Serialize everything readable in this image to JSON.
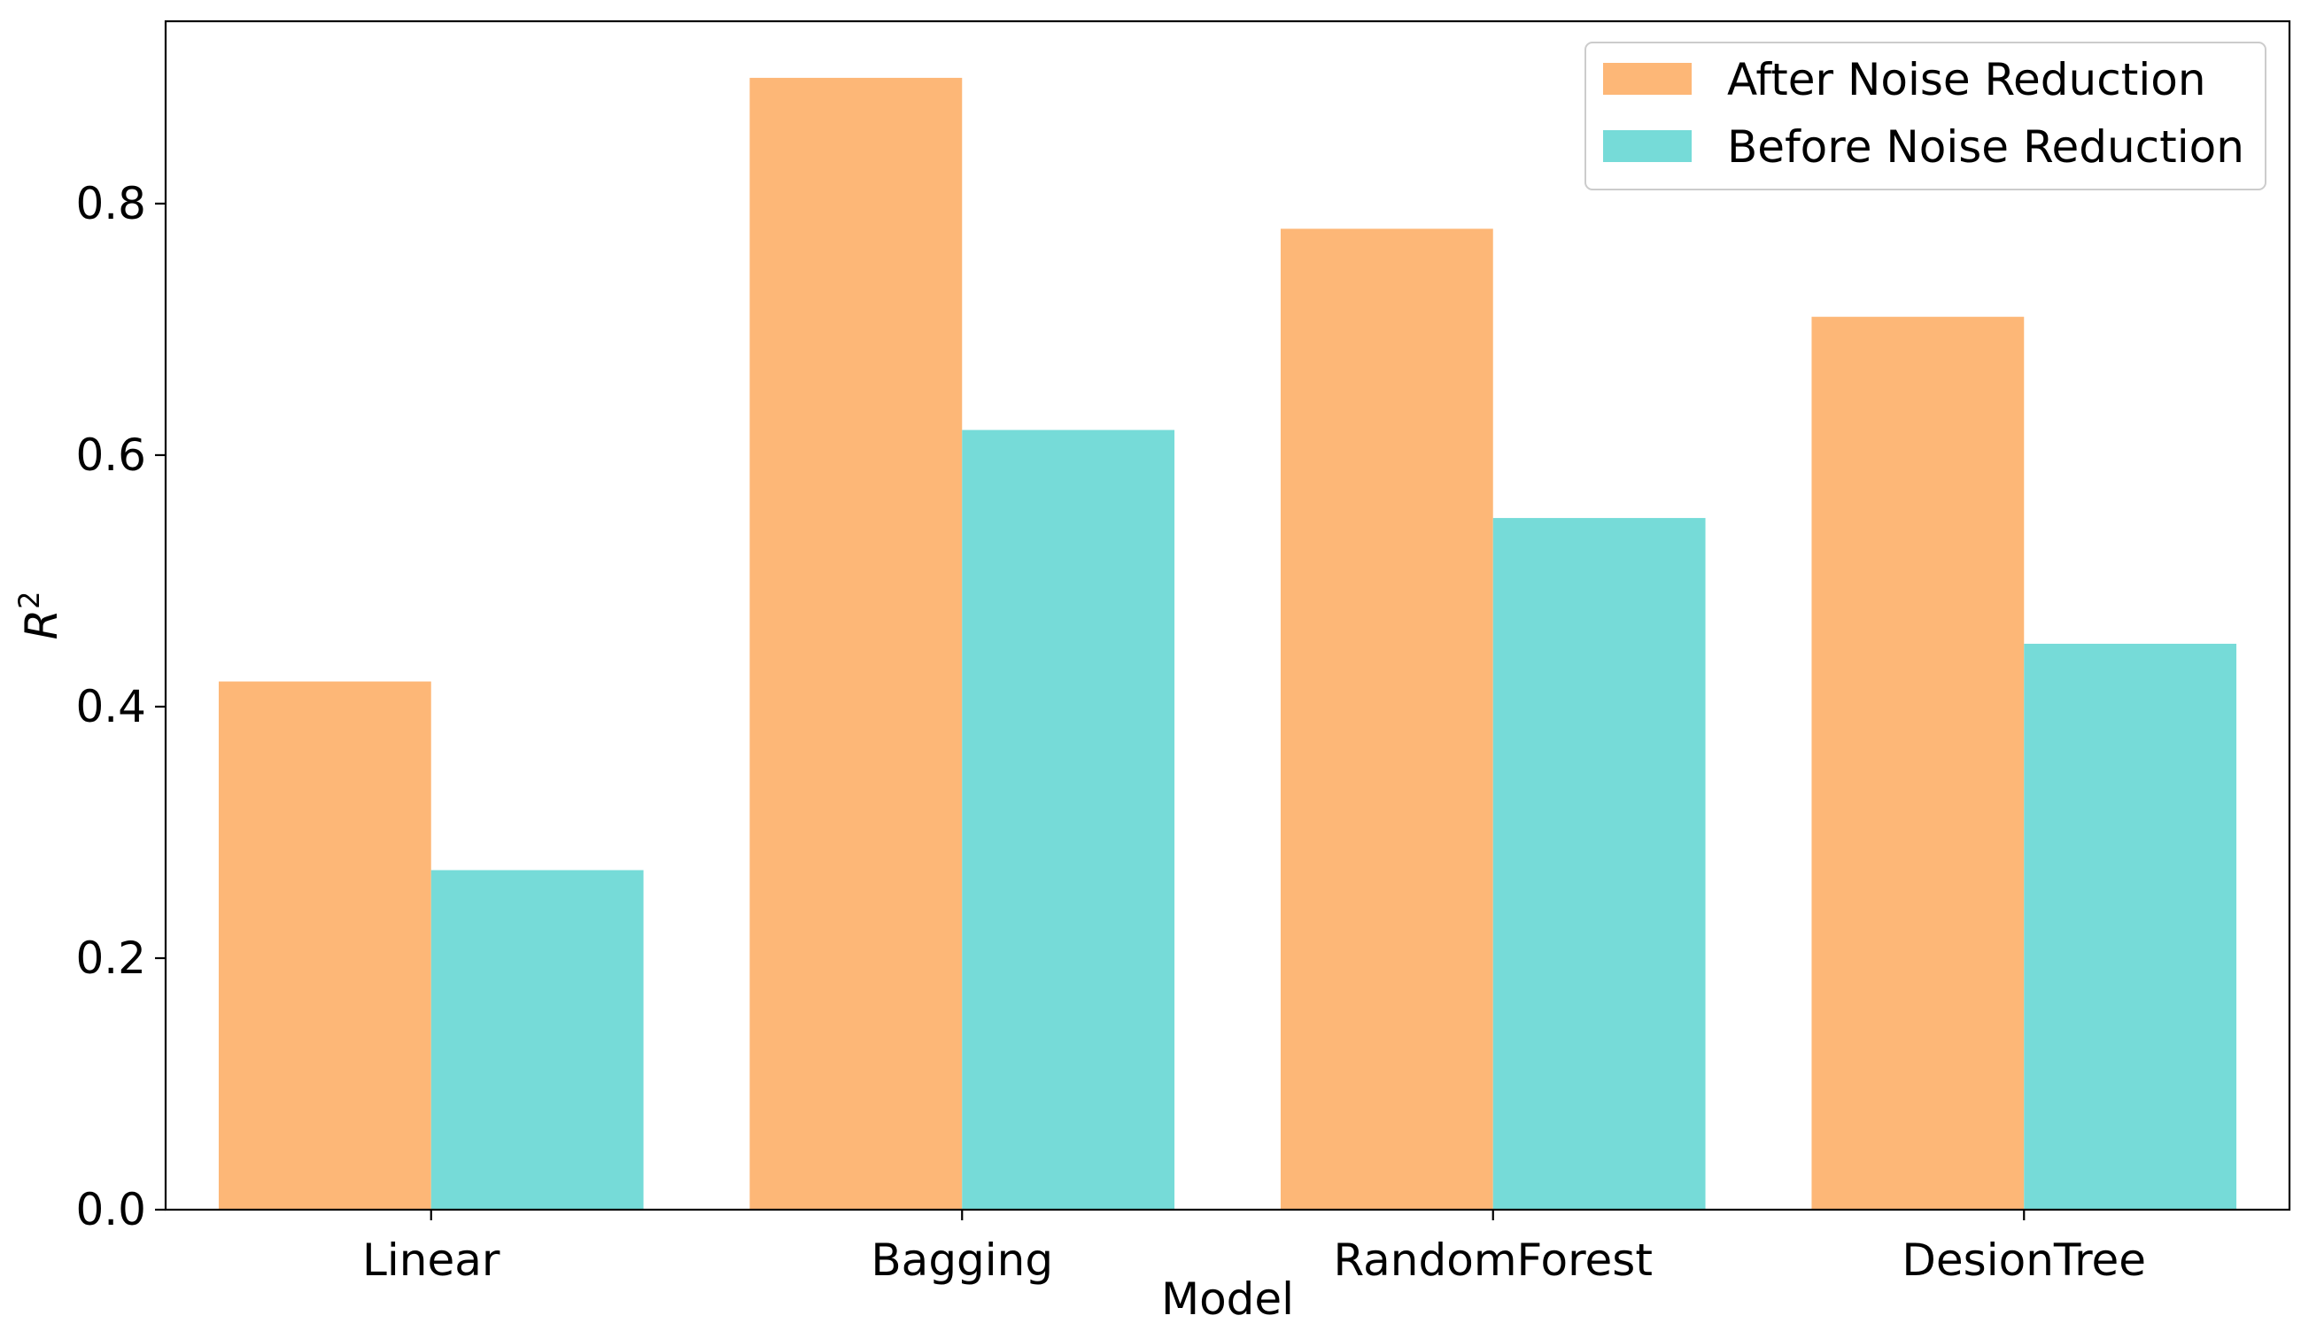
{
  "chart_data": {
    "type": "bar",
    "categories": [
      "Linear",
      "Bagging",
      "RandomForest",
      "DesionTree"
    ],
    "series": [
      {
        "name": "After Noise Reduction",
        "values": [
          0.42,
          0.9,
          0.78,
          0.71
        ],
        "color": "#FDB777"
      },
      {
        "name": "Before Noise Reduction",
        "values": [
          0.27,
          0.62,
          0.55,
          0.45
        ],
        "color": "#76DBD8"
      }
    ],
    "xlabel": "Model",
    "ylabel_base": "R",
    "ylabel_sup": "2",
    "ylim": [
      0,
      0.945
    ],
    "yticks": [
      0.0,
      0.2,
      0.4,
      0.6,
      0.8
    ],
    "ytick_labels": [
      "0.0",
      "0.2",
      "0.4",
      "0.6",
      "0.8"
    ],
    "grid": false,
    "legend_position": "top-right"
  }
}
